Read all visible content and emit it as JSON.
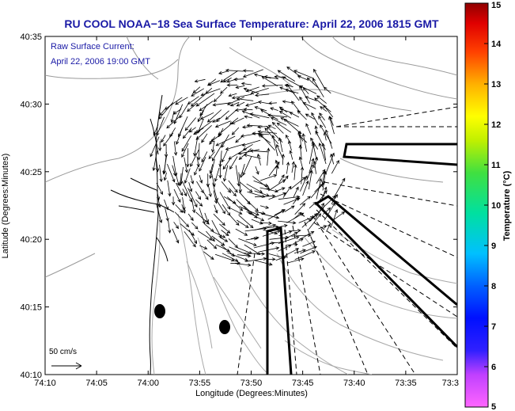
{
  "title": "RU COOL  NOAA−18  Sea Surface Temperature:  April 22, 2006 1815 GMT",
  "legend": {
    "line1": "Raw Surface Current:",
    "line2": "April 22, 2006 19:00 GMT"
  },
  "axes": {
    "xlabel": "Longitude (Degrees:Minutes)",
    "ylabel": "Latitude (Degrees:Minutes)",
    "xticks": [
      "74:10",
      "74:05",
      "74:00",
      "73:55",
      "73:50",
      "73:45",
      "73:40",
      "73:35",
      "73:3"
    ],
    "yticks": [
      "40:35",
      "40:30",
      "40:25",
      "40:20",
      "40:15",
      "40:10"
    ]
  },
  "scale_arrow": {
    "label": "50 cm/s"
  },
  "colorbar": {
    "label": "Temperature (°C)",
    "ticks": [
      "15",
      "14",
      "13",
      "12",
      "11",
      "10",
      "9",
      "8",
      "7",
      "6",
      "5"
    ],
    "min": 5,
    "max": 15
  },
  "colors": {
    "title": "#1a1aa6",
    "land_contour": "#9a9a9a",
    "coast": "#000000",
    "vectors": "#000000"
  }
}
